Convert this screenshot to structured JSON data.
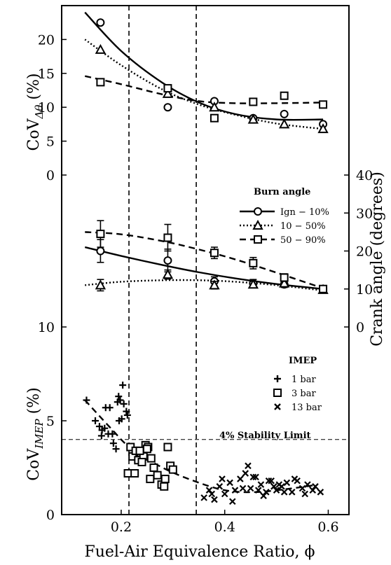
{
  "chart_data": [
    {
      "type": "line",
      "panel": "top",
      "ylabel_main": "CoV",
      "ylabel_sub": "Δθ",
      "ylabel_unit": "(%)",
      "ylim": [
        0,
        25
      ],
      "yticks": [
        "0",
        "5",
        "10",
        "15",
        "20"
      ],
      "series": [
        {
          "key": "ign",
          "marker": "circle",
          "style": "solid",
          "x": [
            0.16,
            0.29,
            0.38,
            0.455,
            0.515,
            0.59
          ],
          "y": [
            22.5,
            10.0,
            10.9,
            8.4,
            9.0,
            7.5
          ],
          "fit_x": [
            0.13,
            0.2,
            0.28,
            0.35,
            0.42,
            0.5,
            0.59
          ],
          "fit_y": [
            24.0,
            18.3,
            13.6,
            10.7,
            9.0,
            8.2,
            8.2
          ]
        },
        {
          "key": "mid",
          "marker": "triangle",
          "style": "dotted",
          "x": [
            0.16,
            0.29,
            0.38,
            0.455,
            0.515,
            0.59
          ],
          "y": [
            18.5,
            12.0,
            10.0,
            8.2,
            7.5,
            6.8
          ],
          "fit_x": [
            0.13,
            0.2,
            0.28,
            0.35,
            0.42,
            0.5,
            0.59
          ],
          "fit_y": [
            20.0,
            16.2,
            12.6,
            10.4,
            8.9,
            7.6,
            6.8
          ]
        },
        {
          "key": "late",
          "marker": "square",
          "style": "dashed",
          "x": [
            0.16,
            0.29,
            0.38,
            0.455,
            0.515,
            0.59
          ],
          "y": [
            13.7,
            12.8,
            8.4,
            10.8,
            11.7,
            10.4
          ],
          "fit_x": [
            0.13,
            0.2,
            0.28,
            0.35,
            0.42,
            0.5,
            0.59
          ],
          "fit_y": [
            14.6,
            13.4,
            11.9,
            10.9,
            10.6,
            10.6,
            10.7
          ]
        }
      ]
    },
    {
      "type": "line",
      "panel": "middle",
      "ylabel": "Crank angle (degrees)",
      "ylim": [
        0,
        40
      ],
      "yticks": [
        "0",
        "10",
        "20",
        "30",
        "40"
      ],
      "legend_title": "Burn angle",
      "series": [
        {
          "key": "ign",
          "name": "Ign − 10%",
          "marker": "circle",
          "style": "solid",
          "x": [
            0.16,
            0.29,
            0.38,
            0.455,
            0.515,
            0.59
          ],
          "y": [
            20.0,
            17.5,
            12.0,
            11.5,
            11.2,
            10.0
          ],
          "err": [
            3.0,
            3.0,
            1.2,
            1.0,
            0.8,
            0.6
          ],
          "fit_x": [
            0.13,
            0.2,
            0.28,
            0.35,
            0.42,
            0.5,
            0.59
          ],
          "fit_y": [
            21.0,
            18.7,
            16.3,
            14.4,
            12.8,
            11.3,
            10.0
          ]
        },
        {
          "key": "mid",
          "name": "10 − 50%",
          "marker": "triangle",
          "style": "dotted",
          "x": [
            0.16,
            0.29,
            0.38,
            0.455,
            0.515,
            0.59
          ],
          "y": [
            11.0,
            13.8,
            11.0,
            11.2,
            11.5,
            9.8
          ],
          "err": [
            1.5,
            1.2,
            1.0,
            0.8,
            0.8,
            0.5
          ],
          "fit_x": [
            0.13,
            0.2,
            0.28,
            0.35,
            0.42,
            0.5,
            0.59
          ],
          "fit_y": [
            11.0,
            11.9,
            12.3,
            12.3,
            11.9,
            11.0,
            9.6
          ]
        },
        {
          "key": "late",
          "name": "50 − 90%",
          "marker": "square",
          "style": "dashed",
          "x": [
            0.16,
            0.29,
            0.38,
            0.455,
            0.515,
            0.59
          ],
          "y": [
            24.5,
            23.5,
            19.5,
            16.8,
            13.0,
            10.0
          ],
          "err": [
            3.5,
            3.5,
            1.5,
            1.5,
            1.0,
            0.8
          ],
          "fit_x": [
            0.13,
            0.2,
            0.28,
            0.35,
            0.42,
            0.5,
            0.59
          ],
          "fit_y": [
            25.0,
            24.4,
            22.6,
            20.4,
            17.8,
            14.3,
            10.2
          ]
        }
      ]
    },
    {
      "type": "scatter",
      "panel": "bottom",
      "ylabel_main": "CoV",
      "ylabel_sub": "IMEP",
      "ylabel_unit": "(%)",
      "ylim": [
        0,
        10
      ],
      "yticks": [
        "0",
        "5",
        "10"
      ],
      "legend_title": "IMEP",
      "stability_limit": {
        "y": 4,
        "label": "4% Stability Limit"
      },
      "fit": {
        "x": [
          0.13,
          0.18,
          0.22,
          0.28,
          0.34,
          0.4,
          0.46,
          0.53,
          0.58
        ],
        "y": [
          6.1,
          4.6,
          3.5,
          2.5,
          1.8,
          1.3,
          1.2,
          1.4,
          1.6
        ]
      },
      "series": [
        {
          "name": "1 bar",
          "marker": "plus",
          "x": [
            0.133,
            0.15,
            0.158,
            0.163,
            0.17,
            0.178,
            0.183,
            0.19,
            0.195,
            0.198,
            0.203,
            0.205,
            0.21,
            0.212,
            0.175,
            0.162,
            0.193,
            0.185,
            0.201,
            0.168,
            0.196
          ],
          "y": [
            6.1,
            5.0,
            4.7,
            4.5,
            5.7,
            5.7,
            4.3,
            3.5,
            6.3,
            6.1,
            6.9,
            5.9,
            5.5,
            5.3,
            4.3,
            4.2,
            6.0,
            3.8,
            5.1,
            4.6,
            5.0
          ]
        },
        {
          "name": "3 bar",
          "marker": "square",
          "x": [
            0.213,
            0.218,
            0.222,
            0.228,
            0.233,
            0.238,
            0.243,
            0.247,
            0.252,
            0.258,
            0.263,
            0.27,
            0.278,
            0.285,
            0.29,
            0.295,
            0.3,
            0.24,
            0.25,
            0.226,
            0.236,
            0.256,
            0.283
          ],
          "y": [
            2.2,
            3.6,
            3.1,
            3.4,
            2.9,
            3.3,
            3.1,
            3.7,
            3.6,
            3.0,
            2.5,
            2.1,
            1.6,
            1.9,
            3.6,
            2.6,
            2.4,
            2.8,
            3.5,
            2.2,
            3.4,
            1.9,
            1.5
          ]
        },
        {
          "name": "13 bar",
          "marker": "x",
          "x": [
            0.36,
            0.37,
            0.38,
            0.39,
            0.4,
            0.41,
            0.42,
            0.43,
            0.44,
            0.45,
            0.46,
            0.47,
            0.48,
            0.49,
            0.5,
            0.51,
            0.52,
            0.53,
            0.54,
            0.55,
            0.56,
            0.57,
            0.585,
            0.375,
            0.395,
            0.415,
            0.435,
            0.455,
            0.475,
            0.495,
            0.515,
            0.535,
            0.555,
            0.575,
            0.445,
            0.465,
            0.485,
            0.505
          ],
          "y": [
            0.9,
            1.3,
            0.8,
            1.5,
            1.1,
            1.7,
            1.3,
            1.9,
            2.2,
            1.4,
            2.0,
            1.6,
            1.2,
            1.8,
            1.3,
            1.5,
            1.7,
            1.2,
            1.8,
            1.4,
            1.6,
            1.3,
            1.2,
            1.1,
            1.9,
            0.7,
            1.4,
            2.0,
            1.0,
            1.5,
            1.2,
            1.9,
            1.1,
            1.5,
            2.6,
            1.3,
            1.8,
            1.6
          ]
        }
      ]
    }
  ],
  "xaxis": {
    "label": "Fuel-Air Equivalence Ratio, ϕ",
    "xlim": [
      0.085,
      0.64
    ],
    "ticks": [
      0.2,
      0.4,
      0.6
    ],
    "tick_labels": [
      "0.2",
      "0.4",
      "0.6"
    ],
    "vlines": [
      0.215,
      0.345
    ]
  }
}
